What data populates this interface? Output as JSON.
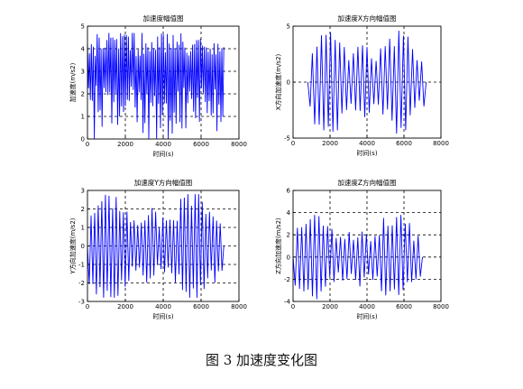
{
  "figure": {
    "caption": "图 3  加速度变化图"
  },
  "chart_data": [
    {
      "type": "line",
      "title": "加速度幅值图",
      "xlabel": "时间(s)",
      "ylabel": "加速度(m/s2)",
      "xlim": [
        0,
        8000
      ],
      "ylim": [
        0,
        5
      ],
      "xticks": [
        0,
        2000,
        4000,
        6000,
        8000
      ],
      "yticks": [
        0,
        1,
        2,
        3,
        4,
        5
      ],
      "grid": "dashed",
      "series_color": "#0000ff",
      "series": [
        {
          "kind": "magnitude",
          "x_end": 7200,
          "cycles": 70,
          "amplitude": 4.7,
          "seed": 1
        }
      ]
    },
    {
      "type": "line",
      "title": "加速度X方向幅值图",
      "xlabel": "时间(s)",
      "ylabel": "X方向加速度(m/s2)",
      "xlim": [
        0,
        8000
      ],
      "ylim": [
        -5,
        5
      ],
      "xticks": [
        0,
        2000,
        4000,
        6000,
        8000
      ],
      "yticks": [
        -5,
        0,
        5
      ],
      "grid": "dashed",
      "series_color": "#0000ff",
      "series": [
        {
          "kind": "oscillation",
          "x_start": 800,
          "x_end": 7200,
          "cycles": 26,
          "amplitude": 4.6,
          "seed": 2
        }
      ]
    },
    {
      "type": "line",
      "title": "加速度Y方向幅值图",
      "xlabel": "时间(s)",
      "ylabel": "Y方向加速度(m/s2)",
      "xlim": [
        0,
        8000
      ],
      "ylim": [
        -3,
        3
      ],
      "xticks": [
        0,
        2000,
        4000,
        6000,
        8000
      ],
      "yticks": [
        -3,
        -2,
        -1,
        0,
        1,
        2,
        3
      ],
      "grid": "dashed",
      "series_color": "#0000ff",
      "series": [
        {
          "kind": "oscillation",
          "x_start": 0,
          "x_end": 7200,
          "cycles": 38,
          "amplitude": 2.8,
          "seed": 3
        }
      ]
    },
    {
      "type": "line",
      "title": "加速度Z方向幅值图",
      "xlabel": "时间(s)",
      "ylabel": "Z方向加速度(m/s2)",
      "xlim": [
        0,
        8000
      ],
      "ylim": [
        -4,
        6
      ],
      "xticks": [
        0,
        2000,
        4000,
        6000,
        8000
      ],
      "yticks": [
        -4,
        -2,
        0,
        2,
        4,
        6
      ],
      "grid": "dashed",
      "series_color": "#0000ff",
      "series": [
        {
          "kind": "oscillation",
          "x_start": 0,
          "x_end": 7000,
          "cycles": 30,
          "amplitude": 3.8,
          "seed": 4
        }
      ]
    }
  ]
}
